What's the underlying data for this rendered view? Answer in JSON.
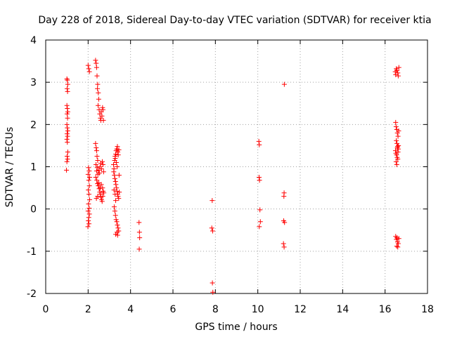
{
  "chart_data": {
    "type": "scatter",
    "title": "Day 228 of 2018, Sidereal Day-to-day VTEC variation (SDTVAR) for receiver ktia",
    "xlabel": "GPS time / hours",
    "ylabel": "SDTVAR / TECUs",
    "xlim": [
      0,
      18
    ],
    "ylim": [
      -2,
      4
    ],
    "xticks": [
      0,
      2,
      4,
      6,
      8,
      10,
      12,
      14,
      16,
      18
    ],
    "yticks": [
      -2,
      -1,
      0,
      1,
      2,
      3,
      4
    ],
    "grid": true,
    "marker": "+",
    "color": "#ff0000",
    "series": [
      {
        "name": "SDTVAR",
        "points": [
          [
            1.0,
            3.08
          ],
          [
            1.02,
            3.05
          ],
          [
            1.04,
            2.95
          ],
          [
            1.01,
            2.85
          ],
          [
            1.03,
            2.78
          ],
          [
            1.0,
            2.45
          ],
          [
            1.02,
            2.38
          ],
          [
            1.04,
            2.3
          ],
          [
            1.01,
            2.25
          ],
          [
            1.03,
            2.15
          ],
          [
            1.0,
            2.0
          ],
          [
            1.02,
            1.92
          ],
          [
            1.04,
            1.85
          ],
          [
            1.01,
            1.78
          ],
          [
            1.03,
            1.72
          ],
          [
            1.0,
            1.65
          ],
          [
            1.02,
            1.58
          ],
          [
            1.04,
            1.35
          ],
          [
            1.01,
            1.25
          ],
          [
            1.03,
            1.18
          ],
          [
            1.0,
            1.12
          ],
          [
            0.98,
            0.92
          ],
          [
            2.0,
            3.4
          ],
          [
            2.03,
            3.32
          ],
          [
            2.06,
            3.25
          ],
          [
            2.02,
            0.98
          ],
          [
            2.05,
            0.9
          ],
          [
            2.0,
            0.82
          ],
          [
            2.07,
            0.75
          ],
          [
            2.03,
            0.68
          ],
          [
            2.06,
            0.55
          ],
          [
            2.01,
            0.45
          ],
          [
            2.04,
            0.35
          ],
          [
            2.07,
            0.22
          ],
          [
            2.02,
            0.12
          ],
          [
            2.05,
            0.02
          ],
          [
            2.0,
            -0.05
          ],
          [
            2.06,
            -0.12
          ],
          [
            2.03,
            -0.2
          ],
          [
            2.01,
            -0.28
          ],
          [
            2.04,
            -0.35
          ],
          [
            1.99,
            -0.42
          ],
          [
            2.35,
            3.52
          ],
          [
            2.38,
            3.45
          ],
          [
            2.4,
            3.35
          ],
          [
            2.42,
            3.15
          ],
          [
            2.45,
            2.95
          ],
          [
            2.44,
            2.85
          ],
          [
            2.48,
            2.75
          ],
          [
            2.5,
            2.6
          ],
          [
            2.47,
            2.45
          ],
          [
            2.52,
            2.35
          ],
          [
            2.55,
            2.25
          ],
          [
            2.58,
            2.15
          ],
          [
            2.6,
            2.1
          ],
          [
            2.62,
            2.3
          ],
          [
            2.65,
            2.2
          ],
          [
            2.68,
            2.4
          ],
          [
            2.7,
            2.35
          ],
          [
            2.72,
            2.1
          ],
          [
            2.35,
            1.55
          ],
          [
            2.38,
            1.45
          ],
          [
            2.4,
            1.38
          ],
          [
            2.42,
            1.25
          ],
          [
            2.45,
            1.15
          ],
          [
            2.37,
            1.05
          ],
          [
            2.43,
            0.98
          ],
          [
            2.4,
            0.9
          ],
          [
            2.46,
            0.82
          ],
          [
            2.5,
            0.92
          ],
          [
            2.53,
            0.85
          ],
          [
            2.56,
            1.0
          ],
          [
            2.6,
            1.08
          ],
          [
            2.63,
            0.95
          ],
          [
            2.67,
            1.12
          ],
          [
            2.7,
            1.05
          ],
          [
            2.73,
            0.88
          ],
          [
            2.36,
            0.75
          ],
          [
            2.41,
            0.68
          ],
          [
            2.44,
            0.6
          ],
          [
            2.48,
            0.55
          ],
          [
            2.52,
            0.48
          ],
          [
            2.55,
            0.4
          ],
          [
            2.58,
            0.35
          ],
          [
            2.6,
            0.28
          ],
          [
            2.63,
            0.22
          ],
          [
            2.66,
            0.18
          ],
          [
            2.69,
            0.3
          ],
          [
            2.71,
            0.42
          ],
          [
            2.74,
            0.38
          ],
          [
            2.39,
            0.25
          ],
          [
            2.45,
            0.3
          ],
          [
            2.5,
            0.62
          ],
          [
            2.57,
            0.5
          ],
          [
            2.62,
            0.58
          ],
          [
            2.68,
            0.5
          ],
          [
            3.2,
            1.05
          ],
          [
            3.22,
            0.95
          ],
          [
            3.25,
            1.15
          ],
          [
            3.27,
            1.25
          ],
          [
            3.3,
            1.3
          ],
          [
            3.32,
            1.38
          ],
          [
            3.35,
            1.42
          ],
          [
            3.38,
            1.48
          ],
          [
            3.4,
            1.35
          ],
          [
            3.42,
            1.28
          ],
          [
            3.45,
            1.4
          ],
          [
            3.28,
            1.2
          ],
          [
            3.33,
            1.1
          ],
          [
            3.37,
            1.0
          ],
          [
            3.21,
            0.88
          ],
          [
            3.24,
            0.8
          ],
          [
            3.26,
            0.72
          ],
          [
            3.29,
            0.65
          ],
          [
            3.31,
            0.58
          ],
          [
            3.34,
            0.5
          ],
          [
            3.36,
            0.42
          ],
          [
            3.39,
            0.35
          ],
          [
            3.41,
            0.3
          ],
          [
            3.44,
            0.25
          ],
          [
            3.47,
            0.4
          ],
          [
            3.46,
            0.8
          ],
          [
            3.22,
            0.45
          ],
          [
            3.27,
            0.35
          ],
          [
            3.3,
            0.2
          ],
          [
            3.23,
            0.05
          ],
          [
            3.26,
            -0.05
          ],
          [
            3.29,
            -0.15
          ],
          [
            3.32,
            -0.25
          ],
          [
            3.35,
            -0.3
          ],
          [
            3.38,
            -0.38
          ],
          [
            3.41,
            -0.45
          ],
          [
            3.44,
            -0.52
          ],
          [
            3.36,
            -0.55
          ],
          [
            3.3,
            -0.6
          ],
          [
            3.39,
            -0.62
          ],
          [
            4.4,
            -0.32
          ],
          [
            4.42,
            -0.55
          ],
          [
            4.43,
            -0.68
          ],
          [
            4.41,
            -0.95
          ],
          [
            7.85,
            0.2
          ],
          [
            7.83,
            -0.45
          ],
          [
            7.87,
            -0.52
          ],
          [
            7.86,
            -1.75
          ],
          [
            7.88,
            -1.97
          ],
          [
            10.05,
            1.6
          ],
          [
            10.07,
            1.52
          ],
          [
            10.06,
            0.75
          ],
          [
            10.08,
            0.68
          ],
          [
            10.1,
            -0.02
          ],
          [
            10.12,
            -0.3
          ],
          [
            10.07,
            -0.42
          ],
          [
            11.25,
            2.95
          ],
          [
            11.24,
            0.38
          ],
          [
            11.23,
            0.3
          ],
          [
            11.22,
            -0.28
          ],
          [
            11.26,
            -0.32
          ],
          [
            11.21,
            -0.82
          ],
          [
            11.24,
            -0.9
          ],
          [
            16.48,
            3.25
          ],
          [
            16.5,
            3.18
          ],
          [
            16.53,
            3.32
          ],
          [
            16.56,
            3.28
          ],
          [
            16.6,
            3.22
          ],
          [
            16.62,
            3.15
          ],
          [
            16.65,
            3.35
          ],
          [
            16.5,
            2.05
          ],
          [
            16.52,
            1.95
          ],
          [
            16.55,
            1.88
          ],
          [
            16.58,
            1.8
          ],
          [
            16.61,
            1.72
          ],
          [
            16.64,
            1.85
          ],
          [
            16.53,
            1.62
          ],
          [
            16.56,
            1.55
          ],
          [
            16.59,
            1.48
          ],
          [
            16.62,
            1.42
          ],
          [
            16.49,
            1.38
          ],
          [
            16.51,
            1.32
          ],
          [
            16.54,
            1.28
          ],
          [
            16.57,
            1.22
          ],
          [
            16.6,
            1.18
          ],
          [
            16.63,
            1.5
          ],
          [
            16.52,
            1.12
          ],
          [
            16.55,
            1.05
          ],
          [
            16.58,
            1.45
          ],
          [
            16.61,
            1.35
          ],
          [
            16.5,
            -0.65
          ],
          [
            16.53,
            -0.72
          ],
          [
            16.56,
            -0.68
          ],
          [
            16.59,
            -0.78
          ],
          [
            16.62,
            -0.82
          ],
          [
            16.55,
            -0.88
          ],
          [
            16.6,
            -0.9
          ],
          [
            16.65,
            -0.7
          ]
        ]
      }
    ]
  }
}
